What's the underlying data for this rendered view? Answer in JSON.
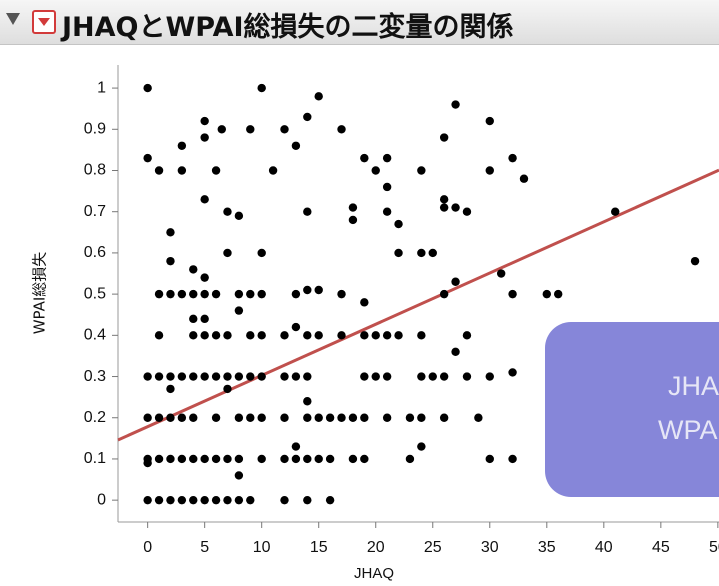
{
  "chart_data": {
    "type": "scatter",
    "title": "JHAQとWPAI総損失の二変量の関係",
    "xlabel": "JHAQ",
    "ylabel": "WPAI総損失",
    "xlim": [
      -2.6,
      50.1
    ],
    "ylim": [
      -0.053,
      1.056
    ],
    "xticks": [
      0,
      5,
      10,
      15,
      20,
      25,
      30,
      35,
      40,
      45,
      50
    ],
    "yticks": [
      0,
      0.1,
      0.2,
      0.3,
      0.4,
      0.5,
      0.6,
      0.7,
      0.8,
      0.9,
      1
    ],
    "color": "#000000",
    "x": [
      0,
      10,
      15,
      27,
      14,
      5,
      30,
      6.5,
      9,
      12,
      17,
      5,
      26,
      3,
      13,
      0,
      19,
      21,
      32,
      1,
      3,
      6,
      11,
      20,
      24,
      30,
      33,
      21,
      5,
      26,
      18,
      26,
      27,
      7,
      14,
      21,
      28,
      41,
      8,
      18,
      22,
      2,
      7,
      10,
      22,
      24,
      25,
      2,
      48,
      4,
      31,
      5,
      27,
      1,
      2,
      3,
      4,
      5,
      6,
      8,
      9,
      10,
      13,
      17,
      26,
      32,
      35,
      36,
      14,
      15,
      19,
      8,
      4,
      5,
      13,
      1,
      4,
      5,
      6,
      7,
      9,
      10,
      12,
      14,
      15,
      17,
      19,
      20,
      21,
      22,
      24,
      28,
      27,
      0,
      1,
      2,
      3,
      4,
      5,
      6,
      7,
      8,
      9,
      10,
      12,
      13,
      14,
      19,
      20,
      21,
      24,
      25,
      26,
      28,
      30,
      32,
      2,
      7,
      14,
      0,
      1,
      2,
      3,
      4,
      6,
      8,
      9,
      10,
      12,
      14,
      15,
      16,
      17,
      18,
      19,
      21,
      23,
      24,
      26,
      29,
      13,
      24,
      0,
      1,
      2,
      3,
      4,
      5,
      6,
      7,
      8,
      10,
      12,
      13,
      14,
      15,
      16,
      18,
      19,
      23,
      30,
      32,
      0,
      8,
      0,
      1,
      2,
      3,
      4,
      5,
      6,
      7,
      8,
      9,
      12,
      14,
      16
    ],
    "values": [
      1,
      1,
      0.98,
      0.96,
      0.93,
      0.92,
      0.92,
      0.9,
      0.9,
      0.9,
      0.9,
      0.88,
      0.88,
      0.86,
      0.86,
      0.83,
      0.83,
      0.83,
      0.83,
      0.8,
      0.8,
      0.8,
      0.8,
      0.8,
      0.8,
      0.8,
      0.78,
      0.76,
      0.73,
      0.73,
      0.71,
      0.71,
      0.71,
      0.7,
      0.7,
      0.7,
      0.7,
      0.7,
      0.69,
      0.68,
      0.67,
      0.65,
      0.6,
      0.6,
      0.6,
      0.6,
      0.6,
      0.58,
      0.58,
      0.56,
      0.55,
      0.54,
      0.53,
      0.5,
      0.5,
      0.5,
      0.5,
      0.5,
      0.5,
      0.5,
      0.5,
      0.5,
      0.5,
      0.5,
      0.5,
      0.5,
      0.5,
      0.5,
      0.51,
      0.51,
      0.48,
      0.46,
      0.44,
      0.44,
      0.42,
      0.4,
      0.4,
      0.4,
      0.4,
      0.4,
      0.4,
      0.4,
      0.4,
      0.4,
      0.4,
      0.4,
      0.4,
      0.4,
      0.4,
      0.4,
      0.4,
      0.4,
      0.36,
      0.3,
      0.3,
      0.3,
      0.3,
      0.3,
      0.3,
      0.3,
      0.3,
      0.3,
      0.3,
      0.3,
      0.3,
      0.3,
      0.3,
      0.3,
      0.3,
      0.3,
      0.3,
      0.3,
      0.3,
      0.3,
      0.3,
      0.31,
      0.27,
      0.27,
      0.24,
      0.2,
      0.2,
      0.2,
      0.2,
      0.2,
      0.2,
      0.2,
      0.2,
      0.2,
      0.2,
      0.2,
      0.2,
      0.2,
      0.2,
      0.2,
      0.2,
      0.2,
      0.2,
      0.2,
      0.2,
      0.2,
      0.13,
      0.13,
      0.1,
      0.1,
      0.1,
      0.1,
      0.1,
      0.1,
      0.1,
      0.1,
      0.1,
      0.1,
      0.1,
      0.1,
      0.1,
      0.1,
      0.1,
      0.1,
      0.1,
      0.1,
      0.1,
      0.1,
      0.09,
      0.06,
      0,
      0,
      0,
      0,
      0,
      0,
      0,
      0,
      0,
      0,
      0,
      0,
      0
    ],
    "fit": {
      "x": [
        -2.6,
        50.1
      ],
      "values": [
        0.146,
        0.801
      ],
      "color": "#c0504d"
    },
    "overlay": [
      "JHAQ",
      "WPAI"
    ]
  }
}
